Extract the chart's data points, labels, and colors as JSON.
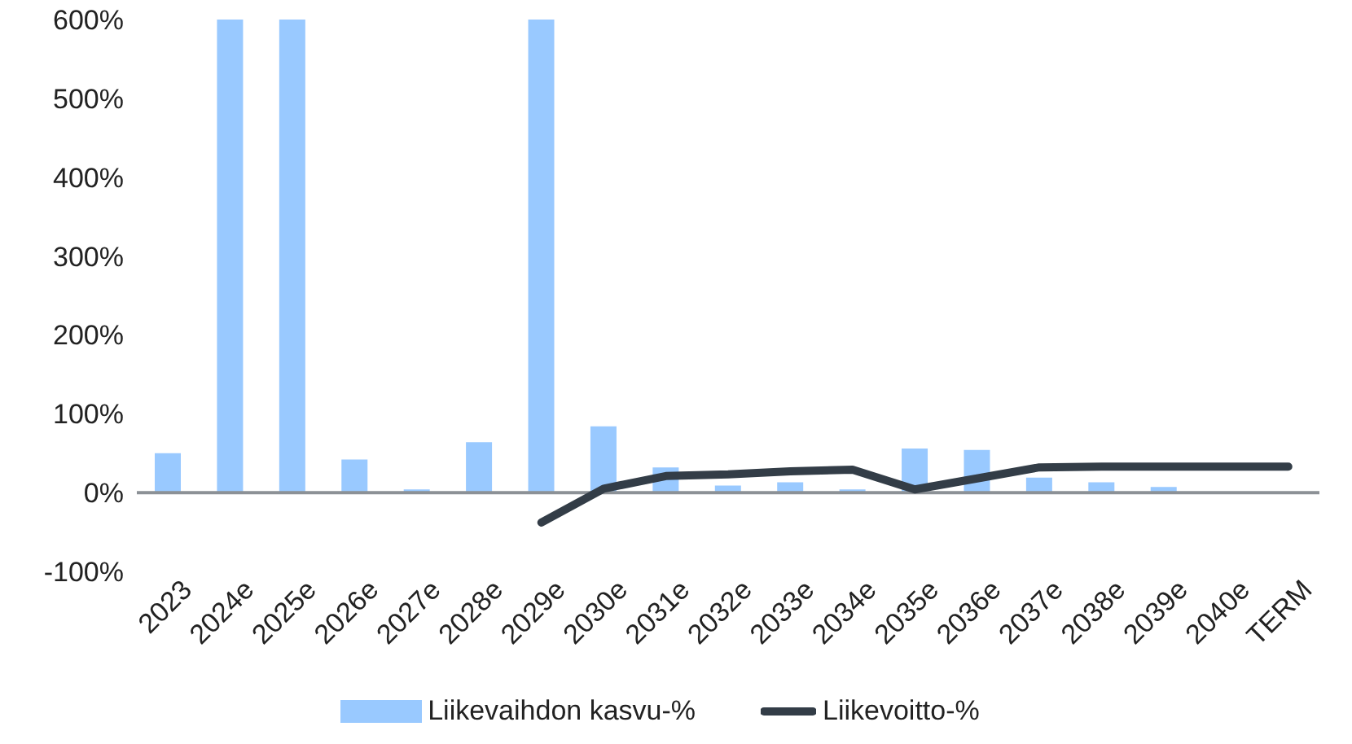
{
  "chart_data": {
    "type": "bar",
    "categories": [
      "2023",
      "2024e",
      "2025e",
      "2026e",
      "2027e",
      "2028e",
      "2029e",
      "2030e",
      "2031e",
      "2032e",
      "2033e",
      "2034e",
      "2035e",
      "2036e",
      "2037e",
      "2038e",
      "2039e",
      "2040e",
      "TERM"
    ],
    "series": [
      {
        "name": "Liikevaihdon kasvu-%",
        "color": "#99c9ff",
        "values": [
          50,
          600,
          600,
          42,
          4,
          64,
          600,
          84,
          32,
          9,
          13,
          4,
          56,
          54,
          19,
          13,
          7,
          null,
          null
        ]
      },
      {
        "name": "Liikevoitto-%",
        "type": "line",
        "color": "#333d47",
        "values": [
          null,
          null,
          null,
          null,
          null,
          null,
          -38,
          5,
          21,
          23,
          27,
          29,
          4,
          18,
          32,
          33,
          33,
          33,
          33
        ]
      }
    ],
    "ylim": [
      -100,
      600
    ],
    "yticks": [
      {
        "value": -100,
        "label": "-100%"
      },
      {
        "value": 0,
        "label": "0%"
      },
      {
        "value": 100,
        "label": "100%"
      },
      {
        "value": 200,
        "label": "200%"
      },
      {
        "value": 300,
        "label": "300%"
      },
      {
        "value": 400,
        "label": "400%"
      },
      {
        "value": 500,
        "label": "500%"
      },
      {
        "value": 600,
        "label": "600%"
      }
    ],
    "ref_lines": [
      {
        "axis": "y",
        "value": 0,
        "color": "#8c9196"
      }
    ],
    "grid": false,
    "legend": "bottom",
    "marker": "none",
    "line_style": "solid"
  }
}
